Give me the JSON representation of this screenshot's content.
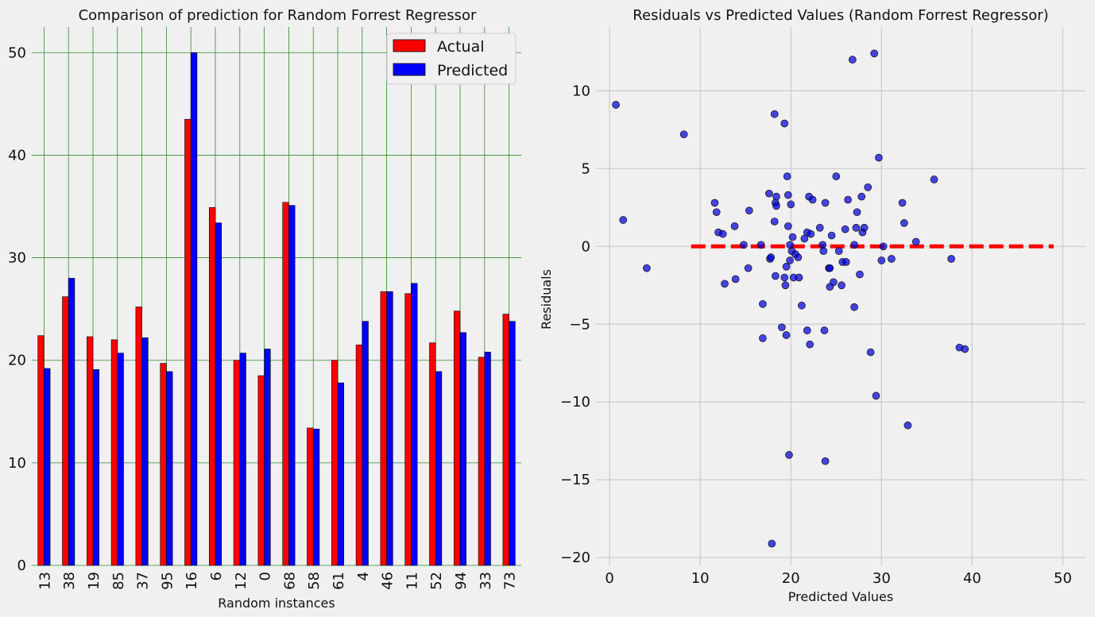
{
  "chart_data": [
    {
      "type": "bar",
      "title": "Comparison of prediction for Random Forrest Regressor",
      "xlabel": "Random instances",
      "ylabel": "",
      "ylim": [
        0,
        52.5
      ],
      "yticks": [
        0,
        10,
        20,
        30,
        40,
        50
      ],
      "categories": [
        "13",
        "38",
        "19",
        "85",
        "37",
        "95",
        "16",
        "6",
        "12",
        "0",
        "68",
        "58",
        "61",
        "4",
        "46",
        "11",
        "52",
        "94",
        "33",
        "73"
      ],
      "series": [
        {
          "name": "Actual",
          "color": "#ff0000",
          "values": [
            22.4,
            26.2,
            22.3,
            22.0,
            25.2,
            19.7,
            43.5,
            34.9,
            20.0,
            18.5,
            35.4,
            13.4,
            20.0,
            21.5,
            26.7,
            26.5,
            21.7,
            24.8,
            20.3,
            24.5
          ]
        },
        {
          "name": "Predicted",
          "color": "#0000ff",
          "values": [
            19.2,
            28.0,
            19.1,
            20.7,
            22.2,
            18.9,
            50.0,
            33.4,
            20.7,
            21.1,
            35.1,
            13.3,
            17.8,
            23.8,
            26.7,
            27.5,
            18.9,
            22.7,
            20.8,
            23.8
          ]
        }
      ],
      "grid": true,
      "grid_color": "#2e8b2e",
      "legend": "top-right"
    },
    {
      "type": "scatter",
      "title": "Residuals vs Predicted Values (Random Forrest Regressor)",
      "xlabel": "Predicted Values",
      "ylabel": "Residuals",
      "xlim": [
        -1.5,
        52.5
      ],
      "ylim": [
        -20.5,
        14.1
      ],
      "xticks": [
        0,
        10,
        20,
        30,
        40,
        50
      ],
      "yticks": [
        -20,
        -15,
        -10,
        -5,
        0,
        5,
        10
      ],
      "grid": true,
      "point_color": "#0000dd",
      "reference_line": {
        "y": 0,
        "x_from": 9,
        "x_to": 49,
        "color": "#ff0000",
        "style": "dashed"
      },
      "points": [
        [
          0.7,
          9.1
        ],
        [
          1.5,
          1.7
        ],
        [
          4.1,
          -1.4
        ],
        [
          8.2,
          7.2
        ],
        [
          11.6,
          2.8
        ],
        [
          11.8,
          2.2
        ],
        [
          12.0,
          0.9
        ],
        [
          12.5,
          0.8
        ],
        [
          12.7,
          -2.4
        ],
        [
          13.8,
          1.3
        ],
        [
          13.9,
          -2.1
        ],
        [
          14.8,
          0.1
        ],
        [
          15.3,
          -1.4
        ],
        [
          15.4,
          2.3
        ],
        [
          16.7,
          0.1
        ],
        [
          16.9,
          -3.7
        ],
        [
          16.9,
          -5.9
        ],
        [
          17.6,
          3.4
        ],
        [
          17.7,
          -0.8
        ],
        [
          17.8,
          -0.7
        ],
        [
          17.9,
          -19.1
        ],
        [
          18.2,
          8.5
        ],
        [
          18.2,
          1.6
        ],
        [
          18.3,
          2.8
        ],
        [
          18.3,
          -1.9
        ],
        [
          18.4,
          3.2
        ],
        [
          18.4,
          2.6
        ],
        [
          19.0,
          -5.2
        ],
        [
          19.3,
          7.9
        ],
        [
          19.3,
          -2.0
        ],
        [
          19.4,
          -2.5
        ],
        [
          19.5,
          -1.3
        ],
        [
          19.5,
          -5.7
        ],
        [
          19.6,
          4.5
        ],
        [
          19.7,
          3.3
        ],
        [
          19.7,
          1.3
        ],
        [
          19.8,
          -13.4
        ],
        [
          19.9,
          0.1
        ],
        [
          19.9,
          -0.9
        ],
        [
          20.0,
          2.7
        ],
        [
          20.1,
          -0.3
        ],
        [
          20.2,
          0.6
        ],
        [
          20.3,
          -2.0
        ],
        [
          20.5,
          -0.5
        ],
        [
          20.8,
          -0.7
        ],
        [
          20.9,
          -2.0
        ],
        [
          21.2,
          -3.8
        ],
        [
          21.5,
          0.5
        ],
        [
          21.8,
          0.9
        ],
        [
          21.8,
          -5.4
        ],
        [
          22.0,
          3.2
        ],
        [
          22.1,
          -6.3
        ],
        [
          22.2,
          0.8
        ],
        [
          22.4,
          3.0
        ],
        [
          23.2,
          1.2
        ],
        [
          23.5,
          0.1
        ],
        [
          23.6,
          -0.3
        ],
        [
          23.7,
          -5.4
        ],
        [
          23.8,
          2.8
        ],
        [
          23.8,
          -13.8
        ],
        [
          24.2,
          -1.4
        ],
        [
          24.3,
          -1.4
        ],
        [
          24.3,
          -2.6
        ],
        [
          24.5,
          0.7
        ],
        [
          24.7,
          -2.3
        ],
        [
          25.0,
          4.5
        ],
        [
          25.3,
          -0.3
        ],
        [
          25.6,
          -2.5
        ],
        [
          25.7,
          -1.0
        ],
        [
          26.0,
          1.1
        ],
        [
          26.1,
          -1.0
        ],
        [
          26.3,
          3.0
        ],
        [
          26.8,
          12.0
        ],
        [
          27.0,
          -3.9
        ],
        [
          27.0,
          0.1
        ],
        [
          27.2,
          1.2
        ],
        [
          27.3,
          2.2
        ],
        [
          27.6,
          -1.8
        ],
        [
          27.8,
          3.2
        ],
        [
          27.9,
          0.9
        ],
        [
          28.1,
          1.2
        ],
        [
          28.5,
          3.8
        ],
        [
          28.8,
          -6.8
        ],
        [
          29.2,
          12.4
        ],
        [
          29.4,
          -9.6
        ],
        [
          29.7,
          5.7
        ],
        [
          30.0,
          -0.9
        ],
        [
          30.2,
          0.0
        ],
        [
          31.1,
          -0.8
        ],
        [
          32.3,
          2.8
        ],
        [
          32.5,
          1.5
        ],
        [
          32.9,
          -11.5
        ],
        [
          33.8,
          0.3
        ],
        [
          35.8,
          4.3
        ],
        [
          37.7,
          -0.8
        ],
        [
          38.6,
          -6.5
        ],
        [
          39.2,
          -6.6
        ]
      ]
    }
  ]
}
